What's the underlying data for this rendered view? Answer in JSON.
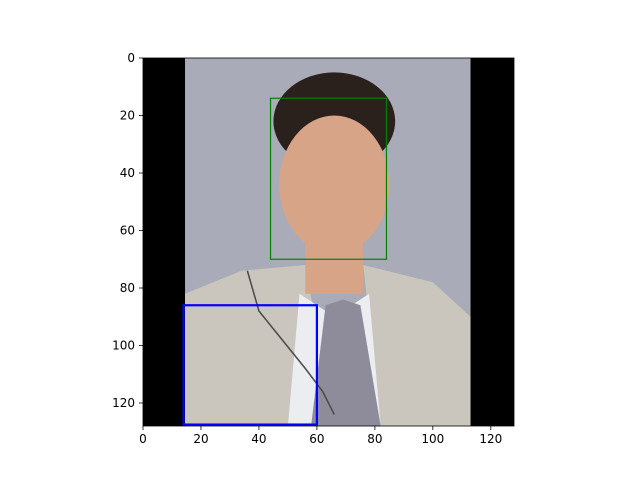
{
  "plot": {
    "x_ticks": [
      "0",
      "20",
      "40",
      "60",
      "80",
      "100",
      "120"
    ],
    "y_ticks": [
      "0",
      "20",
      "40",
      "60",
      "80",
      "100",
      "120"
    ],
    "xlim": [
      0,
      128
    ],
    "ylim": [
      128,
      0
    ],
    "image_extent": [
      0,
      128,
      0,
      128
    ],
    "colors": {
      "pad": "#000000",
      "backdrop": "#a9abb9",
      "suit": "#cac6be",
      "shirt": "#ebedf1",
      "skin": "#d8a487",
      "hair": "#2a211d",
      "face_box": "#008000",
      "region_box": "#0000ff"
    },
    "image_regions": {
      "pad_left": [
        0,
        14.5
      ],
      "pad_right": [
        113,
        128
      ],
      "hair": {
        "cx": 66,
        "cy": 22,
        "rx": 21,
        "ry": 17
      },
      "face": {
        "cx": 66,
        "cy": 44,
        "rx": 19,
        "ry": 24
      },
      "neck": [
        56,
        60,
        76,
        82
      ],
      "shirt_collar": [
        [
          54,
          82
        ],
        [
          66,
          90
        ],
        [
          78,
          82
        ],
        [
          82,
          128
        ],
        [
          50,
          128
        ]
      ],
      "tie": [
        [
          63,
          86
        ],
        [
          69,
          84
        ],
        [
          75,
          86
        ],
        [
          82,
          128
        ],
        [
          58,
          128
        ]
      ],
      "suit_left": [
        [
          14.5,
          82
        ],
        [
          34,
          74
        ],
        [
          56,
          72
        ],
        [
          66,
          128
        ],
        [
          14.5,
          128
        ]
      ],
      "suit_right": [
        [
          76,
          72
        ],
        [
          100,
          78
        ],
        [
          113,
          90
        ],
        [
          113,
          128
        ],
        [
          82,
          128
        ]
      ]
    }
  },
  "boxes": [
    {
      "label": "face",
      "x0": 44,
      "y0": 14,
      "x1": 84,
      "y1": 70
    },
    {
      "label": "region",
      "x0": 14,
      "y0": 86,
      "x1": 60,
      "y1": 127.5
    }
  ]
}
